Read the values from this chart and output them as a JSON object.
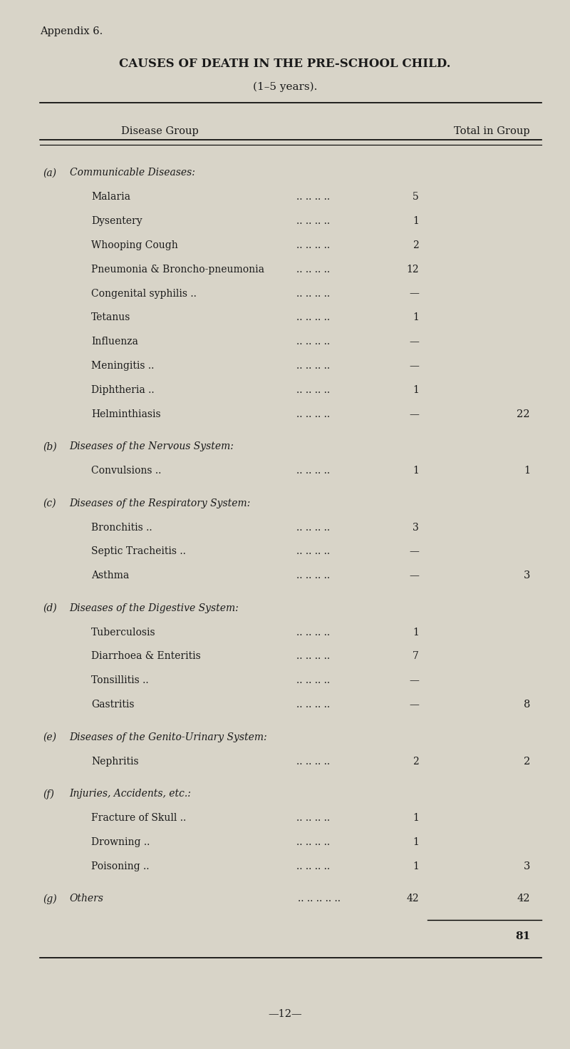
{
  "bg_color": "#d8d4c8",
  "title_appendix": "Appendix 6.",
  "title_main": "CAUSES OF DEATH IN THE PRE-SCHOOL CHILD.",
  "title_sub": "(1–5 years).",
  "col_header_left": "Disease Group",
  "col_header_right": "Total in Group",
  "page_number": "—12—",
  "sections": [
    {
      "label": "(a)",
      "heading": "Communicable Diseases:",
      "items": [
        {
          "name": "Malaria",
          "value": "5",
          "total": null
        },
        {
          "name": "Dysentery",
          "value": "1",
          "total": null
        },
        {
          "name": "Whooping Cough",
          "value": "2",
          "total": null
        },
        {
          "name": "Pneumonia & Broncho-pneumonia",
          "value": "12",
          "total": null
        },
        {
          "name": "Congenital syphilis ..",
          "value": "—",
          "total": null
        },
        {
          "name": "Tetanus",
          "value": "1",
          "total": null
        },
        {
          "name": "Influenza",
          "value": "—",
          "total": null
        },
        {
          "name": "Meningitis ..",
          "value": "—",
          "total": null
        },
        {
          "name": "Diphtheria ..",
          "value": "1",
          "total": null
        },
        {
          "name": "Helminthiasis",
          "value": "—",
          "total": "22"
        }
      ]
    },
    {
      "label": "(b)",
      "heading": "Diseases of the Nervous System:",
      "items": [
        {
          "name": "Convulsions ..",
          "value": "1",
          "total": "1"
        }
      ]
    },
    {
      "label": "(c)",
      "heading": "Diseases of the Respiratory System:",
      "items": [
        {
          "name": "Bronchitis ..",
          "value": "3",
          "total": null
        },
        {
          "name": "Septic Tracheitis ..",
          "value": "—",
          "total": null
        },
        {
          "name": "Asthma",
          "value": "—",
          "total": "3"
        }
      ]
    },
    {
      "label": "(d)",
      "heading": "Diseases of the Digestive System:",
      "items": [
        {
          "name": "Tuberculosis",
          "value": "1",
          "total": null
        },
        {
          "name": "Diarrhoea & Enteritis",
          "value": "7",
          "total": null
        },
        {
          "name": "Tonsillitis ..",
          "value": "—",
          "total": null
        },
        {
          "name": "Gastritis",
          "value": "—",
          "total": "8"
        }
      ]
    },
    {
      "label": "(e)",
      "heading": "Diseases of the Genito-Urinary System:",
      "items": [
        {
          "name": "Nephritis",
          "value": "2",
          "total": "2"
        }
      ]
    },
    {
      "label": "(f)",
      "heading": "Injuries, Accidents, etc.:",
      "items": [
        {
          "name": "Fracture of Skull ..",
          "value": "1",
          "total": null
        },
        {
          "name": "Drowning ..",
          "value": "1",
          "total": null
        },
        {
          "name": "Poisoning ..",
          "value": "1",
          "total": "3"
        }
      ]
    },
    {
      "label": "(g)",
      "heading": null,
      "items": [
        {
          "name": "Others",
          "value": "42",
          "total": "42"
        }
      ]
    }
  ],
  "grand_total": "81"
}
